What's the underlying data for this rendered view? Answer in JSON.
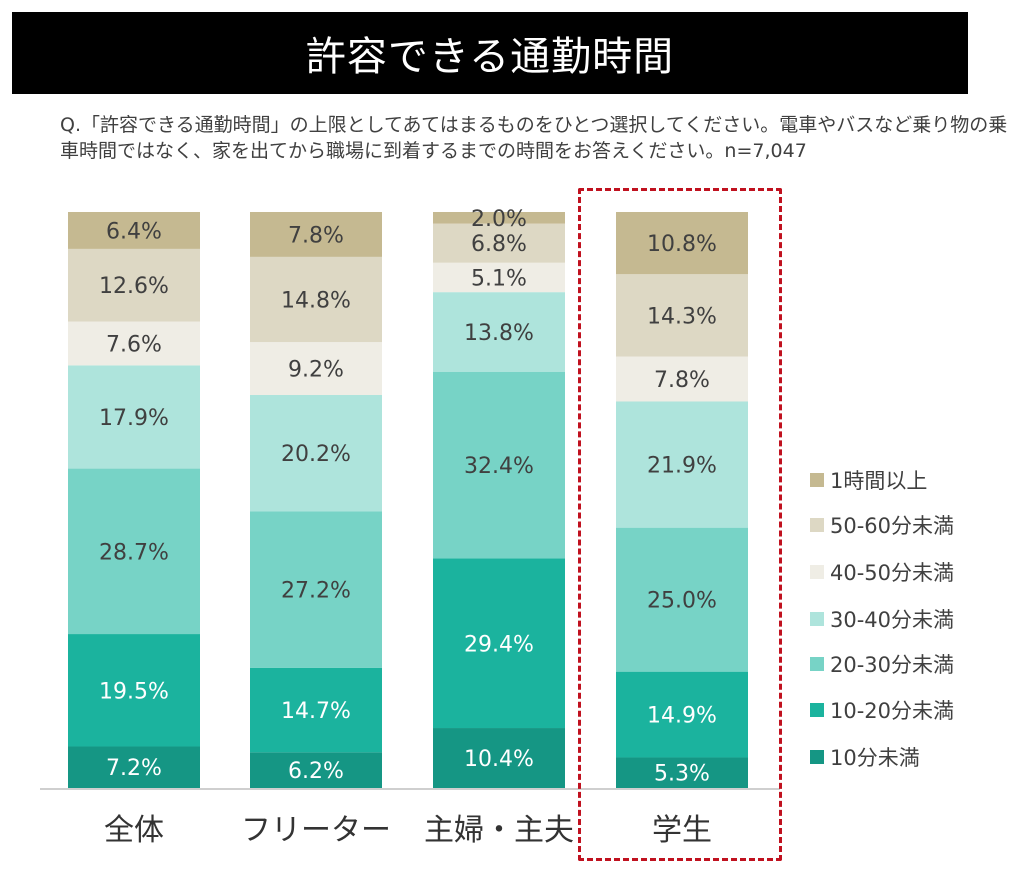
{
  "title": "許容できる通勤時間",
  "question": "Q.「許容できる通勤時間」の上限としてあてはまるものをひとつ選択してください。電車やバスなど乗り物の乗車時間ではなく、家を出てから職場に到着するまでの時間をお答えください。n=7,047",
  "chart_data": {
    "type": "bar",
    "stacked": true,
    "percent": true,
    "title": "許容できる通勤時間",
    "categories": [
      "全体",
      "フリーター",
      "主婦・主夫",
      "学生"
    ],
    "highlight_category": "学生",
    "legend_position": "right",
    "series": [
      {
        "name": "10分未満",
        "color": "#159684",
        "values": [
          7.2,
          6.2,
          10.4,
          5.3
        ]
      },
      {
        "name": "10-20分未満",
        "color": "#1bb39e",
        "values": [
          19.5,
          14.7,
          29.4,
          14.9
        ]
      },
      {
        "name": "20-30分未満",
        "color": "#77d3c6",
        "values": [
          28.7,
          27.2,
          32.4,
          25.0
        ]
      },
      {
        "name": "30-40分未満",
        "color": "#aee4dc",
        "values": [
          17.9,
          20.2,
          13.8,
          21.9
        ]
      },
      {
        "name": "40-50分未満",
        "color": "#efede5",
        "values": [
          7.6,
          9.2,
          5.1,
          7.8
        ]
      },
      {
        "name": "50-60分未満",
        "color": "#ddd8c4",
        "values": [
          12.6,
          14.8,
          6.8,
          14.3
        ]
      },
      {
        "name": "1時間以上",
        "color": "#c5b991",
        "values": [
          6.4,
          7.8,
          2.0,
          10.8
        ]
      }
    ],
    "highlight_color": "#c0111f"
  }
}
